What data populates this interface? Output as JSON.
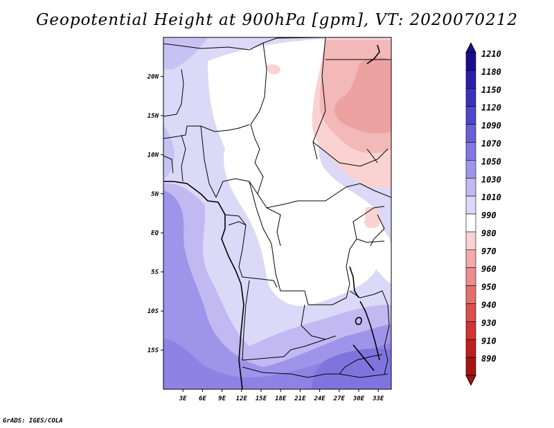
{
  "title": "Geopotential Height at 900hPa [gpm], VT: 2020070212",
  "credit": "GrADS: IGES/COLA",
  "map": {
    "lon_range": [
      0,
      35
    ],
    "lat_range": [
      -20,
      25
    ],
    "lat_ticks": [
      {
        "value": 20,
        "label": "20N"
      },
      {
        "value": 15,
        "label": "15N"
      },
      {
        "value": 10,
        "label": "10N"
      },
      {
        "value": 5,
        "label": "5N"
      },
      {
        "value": 0,
        "label": "EQ"
      },
      {
        "value": -5,
        "label": "5S"
      },
      {
        "value": -10,
        "label": "10S"
      },
      {
        "value": -15,
        "label": "15S"
      }
    ],
    "lon_ticks": [
      {
        "value": 3,
        "label": "3E"
      },
      {
        "value": 6,
        "label": "6E"
      },
      {
        "value": 9,
        "label": "9E"
      },
      {
        "value": 12,
        "label": "12E"
      },
      {
        "value": 15,
        "label": "15E"
      },
      {
        "value": 18,
        "label": "18E"
      },
      {
        "value": 21,
        "label": "21E"
      },
      {
        "value": 24,
        "label": "24E"
      },
      {
        "value": 27,
        "label": "27E"
      },
      {
        "value": 30,
        "label": "30E"
      },
      {
        "value": 33,
        "label": "33E"
      }
    ]
  },
  "colorbar": {
    "levels": [
      "1210",
      "1180",
      "1150",
      "1120",
      "1090",
      "1070",
      "1050",
      "1030",
      "1010",
      "990",
      "980",
      "970",
      "960",
      "950",
      "940",
      "930",
      "910",
      "890"
    ],
    "colors": [
      "#1a0d8c",
      "#2a1fa6",
      "#3a32bb",
      "#4f46c9",
      "#6a60d6",
      "#8478e0",
      "#a094ea",
      "#c2b9f2",
      "#dcd8f7",
      "#ffffff",
      "#fad2d2",
      "#f3aaaa",
      "#ec8e8e",
      "#e46f6f",
      "#dc5050",
      "#d23434",
      "#bf1f1f",
      "#a61414"
    ]
  }
}
